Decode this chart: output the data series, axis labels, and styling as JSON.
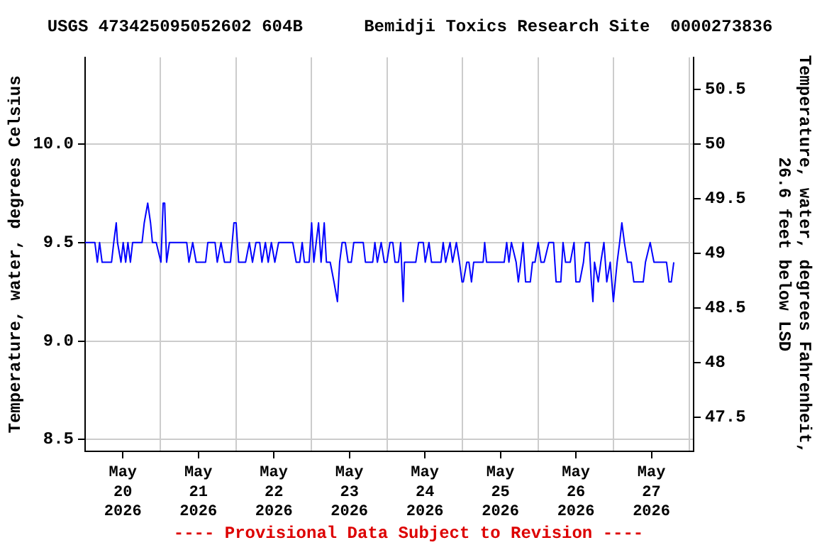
{
  "chart_data": {
    "type": "line",
    "title": "USGS 473425095052602 604B      Bemidji Toxics Research Site  0000273836",
    "ylabel": "Temperature, water, degrees Celsius",
    "y2label": "Temperature, water, degrees Fahrenheit,\n26.6 feet below LSD",
    "annotations": [
      "---- Provisional Data Subject to Revision ----"
    ],
    "x": [
      "2026-05-20T00:00",
      "2026-05-20T03:06",
      "2026-05-20T03:54",
      "2026-05-20T04:36",
      "2026-05-20T05:24",
      "2026-05-20T08:24",
      "2026-05-20T09:06",
      "2026-05-20T09:54",
      "2026-05-20T10:18",
      "2026-05-20T11:24",
      "2026-05-20T12:06",
      "2026-05-20T12:54",
      "2026-05-20T13:36",
      "2026-05-20T14:24",
      "2026-05-20T15:06",
      "2026-05-20T18:06",
      "2026-05-20T18:48",
      "2026-05-20T19:54",
      "2026-05-20T20:48",
      "2026-05-20T21:24",
      "2026-05-20T22:36",
      "2026-05-21T00:06",
      "2026-05-21T00:48",
      "2026-05-21T01:18",
      "2026-05-21T01:54",
      "2026-05-21T02:48",
      "2026-05-21T08:18",
      "2026-05-21T09:00",
      "2026-05-21T10:12",
      "2026-05-21T11:18",
      "2026-05-21T14:18",
      "2026-05-21T15:00",
      "2026-05-21T17:18",
      "2026-05-21T18:00",
      "2026-05-21T19:12",
      "2026-05-21T20:18",
      "2026-05-21T22:12",
      "2026-05-21T23:18",
      "2026-05-22T00:00",
      "2026-05-22T00:48",
      "2026-05-22T03:00",
      "2026-05-22T04:12",
      "2026-05-22T05:12",
      "2026-05-22T06:18",
      "2026-05-22T07:30",
      "2026-05-22T08:12",
      "2026-05-22T09:18",
      "2026-05-22T10:12",
      "2026-05-22T11:12",
      "2026-05-22T12:18",
      "2026-05-22T13:30",
      "2026-05-22T18:00",
      "2026-05-22T19:06",
      "2026-05-22T20:12",
      "2026-05-22T21:00",
      "2026-05-22T21:42",
      "2026-05-22T23:12",
      "2026-05-23T00:00",
      "2026-05-23T00:42",
      "2026-05-23T02:12",
      "2026-05-23T03:00",
      "2026-05-23T04:00",
      "2026-05-23T04:42",
      "2026-05-23T05:54",
      "2026-05-23T07:06",
      "2026-05-23T08:12",
      "2026-05-23T08:54",
      "2026-05-23T09:42",
      "2026-05-23T10:42",
      "2026-05-23T11:36",
      "2026-05-23T12:36",
      "2026-05-23T13:24",
      "2026-05-23T14:54",
      "2026-05-23T16:24",
      "2026-05-23T17:06",
      "2026-05-23T19:24",
      "2026-05-23T20:06",
      "2026-05-23T20:54",
      "2026-05-23T22:06",
      "2026-05-23T23:06",
      "2026-05-23T23:54",
      "2026-05-24T00:54",
      "2026-05-24T01:48",
      "2026-05-24T02:30",
      "2026-05-24T03:36",
      "2026-05-24T04:18",
      "2026-05-24T05:06",
      "2026-05-24T05:30",
      "2026-05-24T06:06",
      "2026-05-24T09:06",
      "2026-05-24T10:00",
      "2026-05-24T11:30",
      "2026-05-24T12:06",
      "2026-05-24T13:18",
      "2026-05-24T14:06",
      "2026-05-24T17:06",
      "2026-05-24T17:48",
      "2026-05-24T18:36",
      "2026-05-24T20:00",
      "2026-05-24T20:48",
      "2026-05-24T22:00",
      "2026-05-24T23:00",
      "2026-05-24T23:48",
      "2026-05-25T00:12",
      "2026-05-25T01:18",
      "2026-05-25T02:00",
      "2026-05-25T02:48",
      "2026-05-25T03:30",
      "2026-05-25T04:18",
      "2026-05-25T06:30",
      "2026-05-25T07:00",
      "2026-05-25T07:36",
      "2026-05-25T13:12",
      "2026-05-25T14:00",
      "2026-05-25T14:42",
      "2026-05-25T15:30",
      "2026-05-25T17:00",
      "2026-05-25T17:42",
      "2026-05-25T18:30",
      "2026-05-25T19:12",
      "2026-05-25T20:00",
      "2026-05-25T21:30",
      "2026-05-25T22:12",
      "2026-05-25T23:00",
      "2026-05-26T00:00",
      "2026-05-26T00:54",
      "2026-05-26T01:54",
      "2026-05-26T03:24",
      "2026-05-26T04:54",
      "2026-05-26T05:42",
      "2026-05-26T07:12",
      "2026-05-26T07:54",
      "2026-05-26T08:42",
      "2026-05-26T10:12",
      "2026-05-26T11:24",
      "2026-05-26T12:00",
      "2026-05-26T13:12",
      "2026-05-26T14:24",
      "2026-05-26T15:00",
      "2026-05-26T16:12",
      "2026-05-26T16:54",
      "2026-05-26T17:24",
      "2026-05-26T17:54",
      "2026-05-26T19:06",
      "2026-05-26T19:54",
      "2026-05-26T20:54",
      "2026-05-26T21:48",
      "2026-05-26T22:54",
      "2026-05-26T23:54",
      "2026-05-27T00:30",
      "2026-05-27T01:06",
      "2026-05-27T01:54",
      "2026-05-27T02:36",
      "2026-05-27T03:24",
      "2026-05-27T04:24",
      "2026-05-27T05:36",
      "2026-05-27T06:24",
      "2026-05-27T09:24",
      "2026-05-27T10:06",
      "2026-05-27T11:36",
      "2026-05-27T12:48",
      "2026-05-27T16:48",
      "2026-05-27T17:36",
      "2026-05-27T18:18",
      "2026-05-27T19:06"
    ],
    "series": [
      {
        "color": "#0000ff",
        "values": [
          9.5,
          9.5,
          9.4,
          9.5,
          9.4,
          9.4,
          9.5,
          9.6,
          9.5,
          9.4,
          9.5,
          9.4,
          9.5,
          9.4,
          9.5,
          9.5,
          9.6,
          9.7,
          9.6,
          9.5,
          9.5,
          9.4,
          9.7,
          9.7,
          9.4,
          9.5,
          9.5,
          9.4,
          9.5,
          9.4,
          9.4,
          9.5,
          9.5,
          9.4,
          9.5,
          9.4,
          9.4,
          9.6,
          9.6,
          9.4,
          9.4,
          9.5,
          9.4,
          9.5,
          9.5,
          9.4,
          9.5,
          9.4,
          9.5,
          9.4,
          9.5,
          9.5,
          9.4,
          9.4,
          9.5,
          9.4,
          9.4,
          9.6,
          9.4,
          9.6,
          9.4,
          9.6,
          9.4,
          9.4,
          9.3,
          9.2,
          9.4,
          9.5,
          9.5,
          9.4,
          9.4,
          9.5,
          9.5,
          9.5,
          9.4,
          9.4,
          9.5,
          9.4,
          9.5,
          9.4,
          9.4,
          9.5,
          9.5,
          9.4,
          9.4,
          9.5,
          9.2,
          9.4,
          9.4,
          9.4,
          9.5,
          9.5,
          9.4,
          9.5,
          9.4,
          9.4,
          9.5,
          9.4,
          9.5,
          9.4,
          9.5,
          9.4,
          9.3,
          9.3,
          9.4,
          9.4,
          9.3,
          9.4,
          9.4,
          9.4,
          9.5,
          9.4,
          9.4,
          9.5,
          9.4,
          9.5,
          9.4,
          9.3,
          9.4,
          9.5,
          9.3,
          9.3,
          9.4,
          9.4,
          9.5,
          9.4,
          9.4,
          9.5,
          9.5,
          9.3,
          9.3,
          9.5,
          9.4,
          9.4,
          9.5,
          9.3,
          9.3,
          9.4,
          9.5,
          9.5,
          9.3,
          9.2,
          9.4,
          9.3,
          9.4,
          9.5,
          9.3,
          9.4,
          9.2,
          9.3,
          9.4,
          9.5,
          9.6,
          9.5,
          9.4,
          9.4,
          9.3,
          9.3,
          9.4,
          9.5,
          9.4,
          9.4,
          9.3,
          9.3,
          9.4
        ]
      }
    ],
    "xlim": [
      "2026-05-20T00:00",
      "2026-05-28T01:24"
    ],
    "xticks": [
      {
        "value": "2026-05-20T00:00",
        "label": null
      },
      {
        "value": "2026-05-20T12:00",
        "label": "May\n20\n2026"
      },
      {
        "value": "2026-05-21T00:00",
        "label": null
      },
      {
        "value": "2026-05-21T12:00",
        "label": "May\n21\n2026"
      },
      {
        "value": "2026-05-22T00:00",
        "label": null
      },
      {
        "value": "2026-05-22T12:00",
        "label": "May\n22\n2026"
      },
      {
        "value": "2026-05-23T00:00",
        "label": null
      },
      {
        "value": "2026-05-23T12:00",
        "label": "May\n23\n2026"
      },
      {
        "value": "2026-05-24T00:00",
        "label": null
      },
      {
        "value": "2026-05-24T12:00",
        "label": "May\n24\n2026"
      },
      {
        "value": "2026-05-25T00:00",
        "label": null
      },
      {
        "value": "2026-05-25T12:00",
        "label": "May\n25\n2026"
      },
      {
        "value": "2026-05-26T00:00",
        "label": null
      },
      {
        "value": "2026-05-26T12:00",
        "label": "May\n26\n2026"
      },
      {
        "value": "2026-05-27T00:00",
        "label": null
      },
      {
        "value": "2026-05-27T12:00",
        "label": "May\n27\n2026"
      },
      {
        "value": "2026-05-28T00:00",
        "label": null
      }
    ],
    "ylim": [
      8.44,
      10.44
    ],
    "yticks": [
      {
        "value": 8.5,
        "label": "8.5"
      },
      {
        "value": 9,
        "label": "9.0"
      },
      {
        "value": 9.5,
        "label": "9.5"
      },
      {
        "value": 10,
        "label": "10.0"
      }
    ],
    "y2lim": [
      47.19,
      50.79
    ],
    "y2ticks": [
      47.5,
      48,
      48.5,
      49,
      49.5,
      50,
      50.5
    ],
    "grid": true,
    "legend": false,
    "marker": "none",
    "line_style": "solid"
  }
}
